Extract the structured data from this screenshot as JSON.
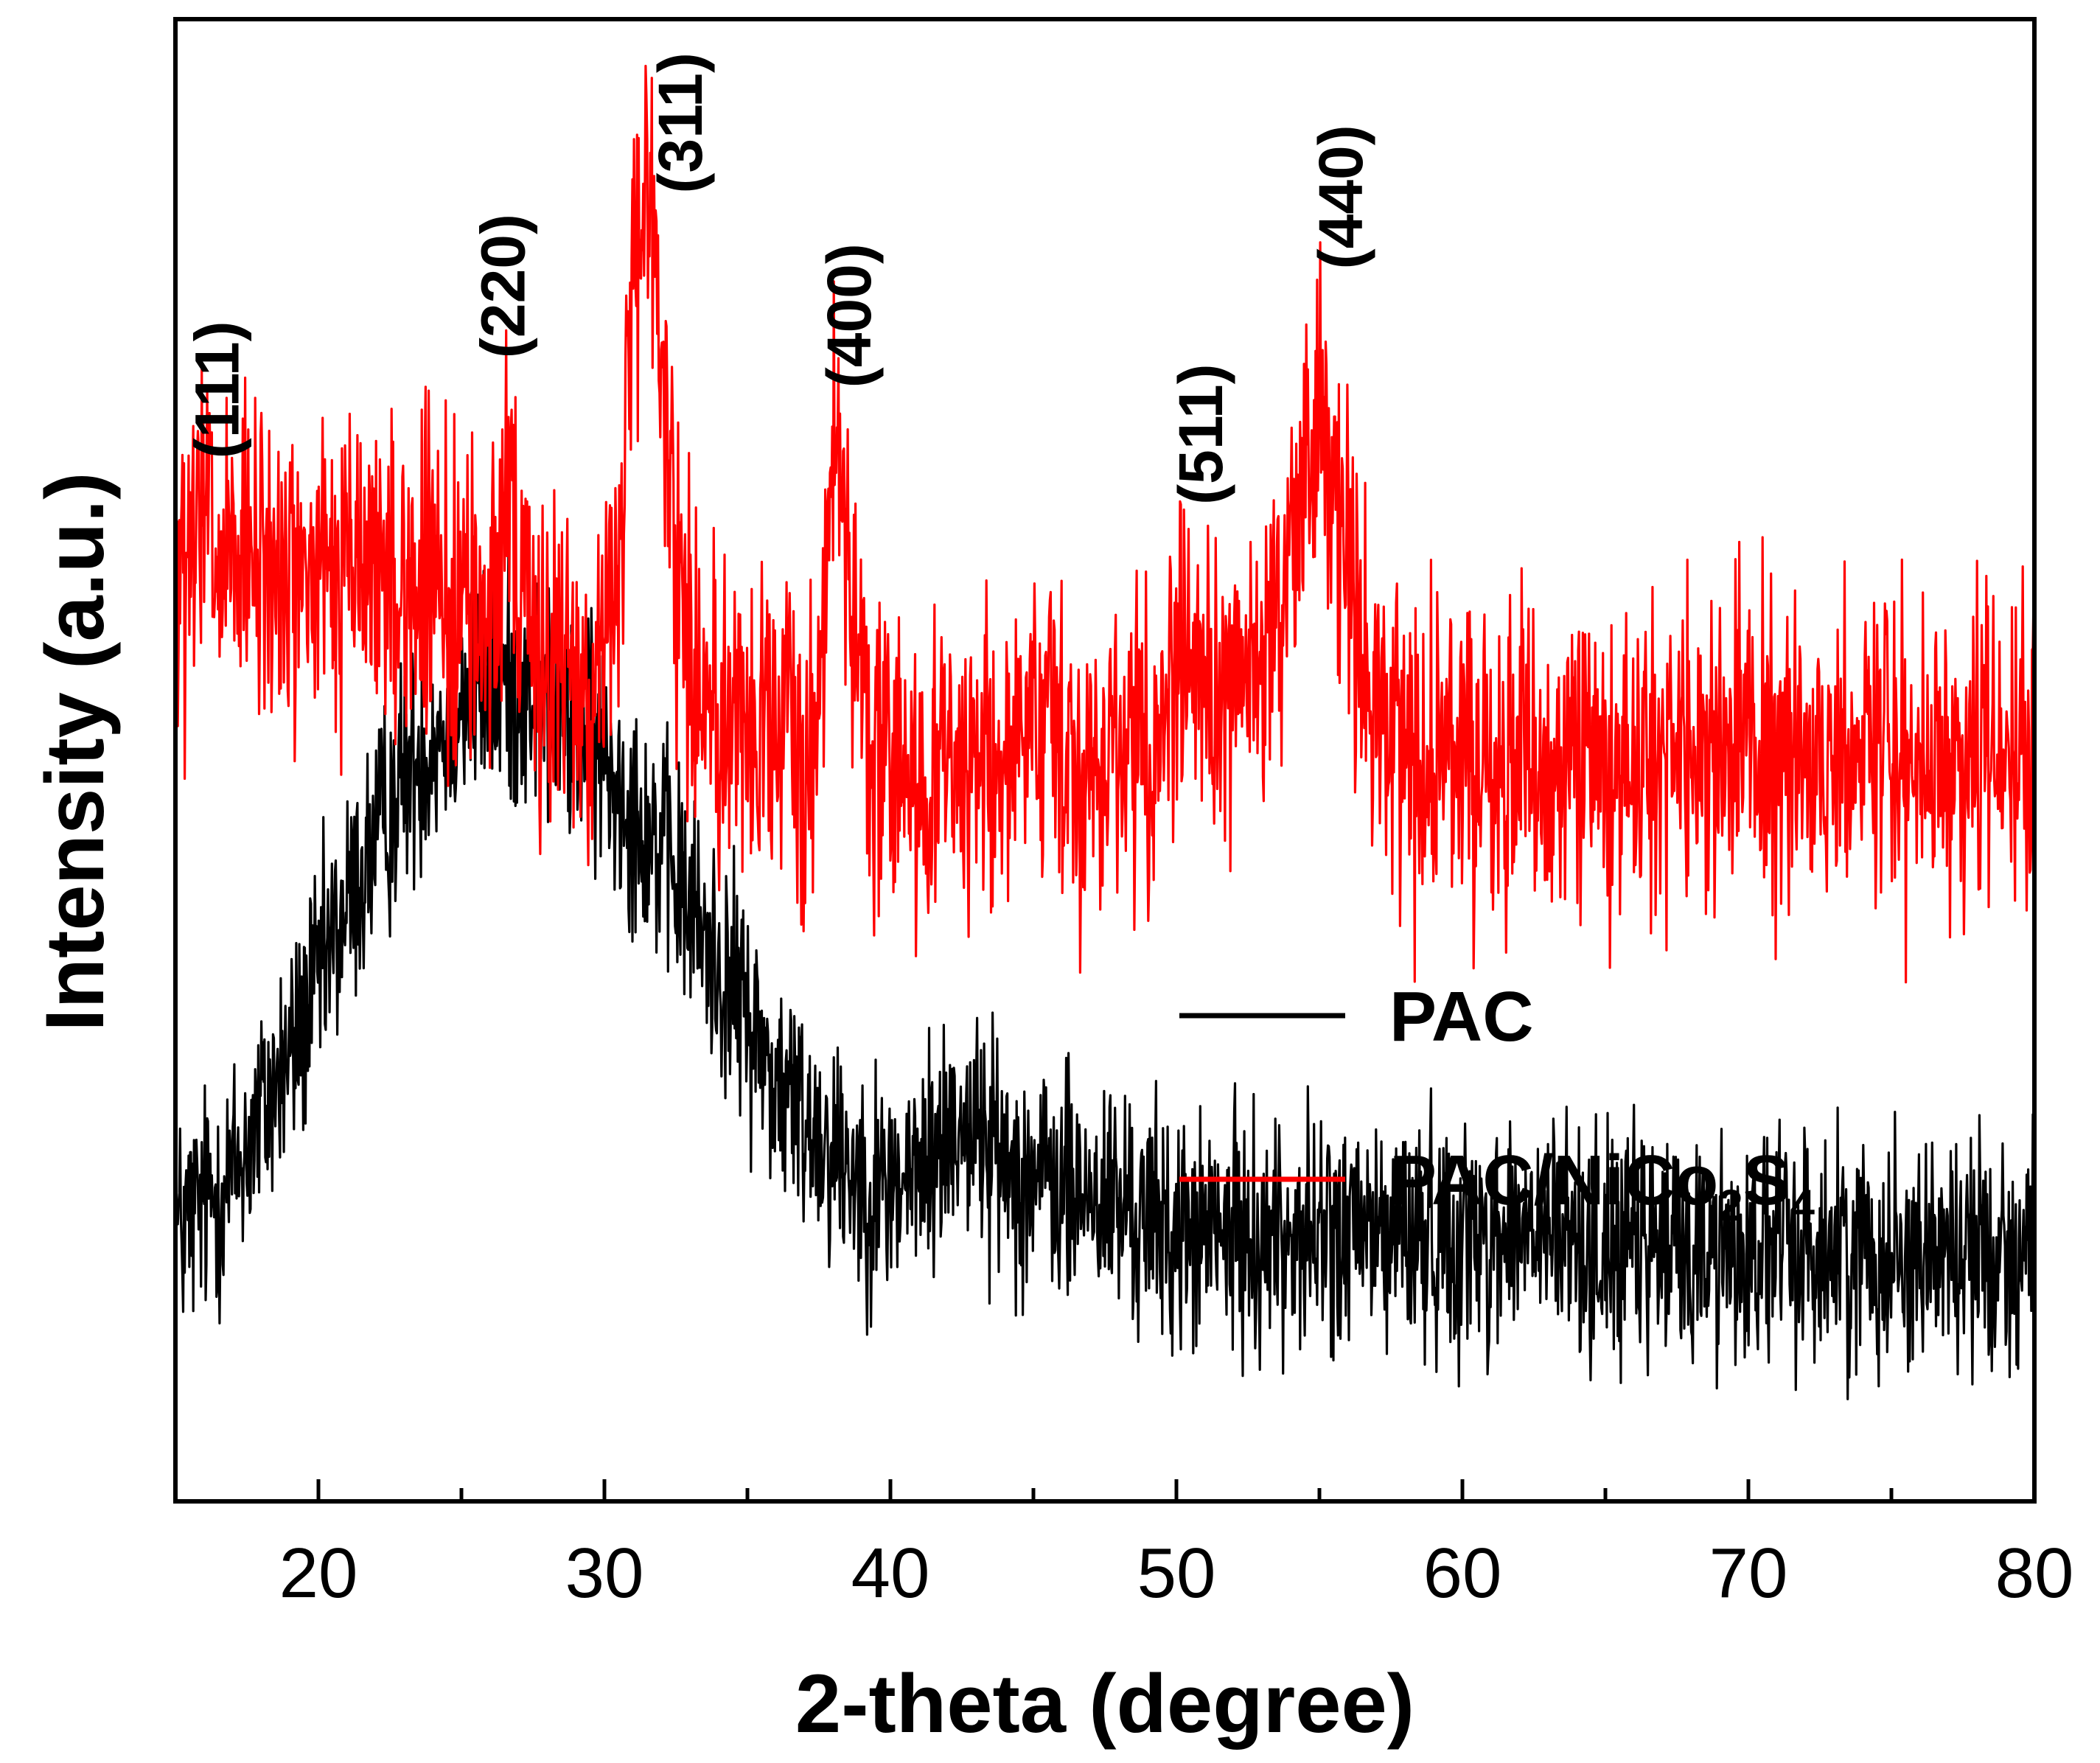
{
  "chart_data": {
    "type": "line",
    "title": "",
    "xlabel": "2-theta (degree)",
    "ylabel": "Intensity (a.u.)",
    "xlim": [
      15,
      80
    ],
    "ylim": [
      0,
      100
    ],
    "y_ticks_shown": false,
    "x_major_ticks": [
      20,
      30,
      40,
      50,
      60,
      70,
      80
    ],
    "x_minor_ticks": [
      25,
      35,
      45,
      55,
      65,
      75
    ],
    "grid": false,
    "legend_position": "center-right",
    "colors": {
      "PAC": "#000000",
      "PAC/NiCo2S4": "#ff0000"
    },
    "series": [
      {
        "name": "PAC",
        "legend_label": {
          "main": "PAC",
          "parts": []
        },
        "color": "#000000",
        "x": [
          15,
          17,
          19,
          21,
          23,
          25,
          26.5,
          28,
          30,
          32,
          34,
          35,
          36,
          38,
          39.5,
          41,
          42.5,
          44,
          46,
          48,
          50,
          54,
          58,
          62,
          66,
          70,
          74,
          78,
          80
        ],
        "values": [
          18,
          22,
          30,
          40,
          49,
          54,
          55,
          54,
          50,
          44,
          36,
          33,
          28,
          24,
          21,
          22,
          26,
          23,
          21,
          20,
          18,
          18,
          18,
          18,
          17,
          17,
          17,
          17,
          17
        ],
        "noise_amplitude": 4
      },
      {
        "name": "PAC/NiCo2S4",
        "legend_label": {
          "main": "PAC/NiCo",
          "parts": [
            {
              "text": "2",
              "sub": true
            },
            {
              "text": "S",
              "sub": false
            },
            {
              "text": "4",
              "sub": true
            }
          ]
        },
        "color": "#ff0000",
        "x": [
          15,
          18,
          20,
          22,
          24,
          26,
          28,
          29.5,
          33,
          36,
          40,
          44,
          48,
          50,
          52,
          53.5,
          56.2,
          58,
          62,
          66,
          70,
          74,
          78,
          80
        ],
        "values": [
          61,
          63,
          62,
          63,
          61,
          60,
          57,
          55,
          55,
          51,
          49,
          50,
          51,
          53,
          55,
          56,
          54,
          50,
          50,
          50,
          51,
          50,
          51,
          50
        ],
        "peaks": [
          {
            "x": 16.0,
            "height": 5,
            "width": 0.25
          },
          {
            "x": 26.6,
            "height": 14,
            "width": 0.18
          },
          {
            "x": 31.5,
            "height": 32,
            "width": 0.65
          },
          {
            "x": 38.2,
            "height": 21,
            "width": 0.45
          },
          {
            "x": 50.4,
            "height": 5,
            "width": 0.4
          },
          {
            "x": 55.0,
            "height": 19,
            "width": 0.75
          }
        ],
        "noise_amplitude": 5.5
      }
    ],
    "annotations": [
      {
        "text": "(111)",
        "x": 17.2,
        "y": 75
      },
      {
        "text": "(220)",
        "x": 27.2,
        "y": 82
      },
      {
        "text": "(311)",
        "x": 33.4,
        "y": 93
      },
      {
        "text": "(400)",
        "x": 39.3,
        "y": 80
      },
      {
        "text": "(511)",
        "x": 51.6,
        "y": 72
      },
      {
        "text": "(440)",
        "x": 56.5,
        "y": 88
      }
    ]
  }
}
